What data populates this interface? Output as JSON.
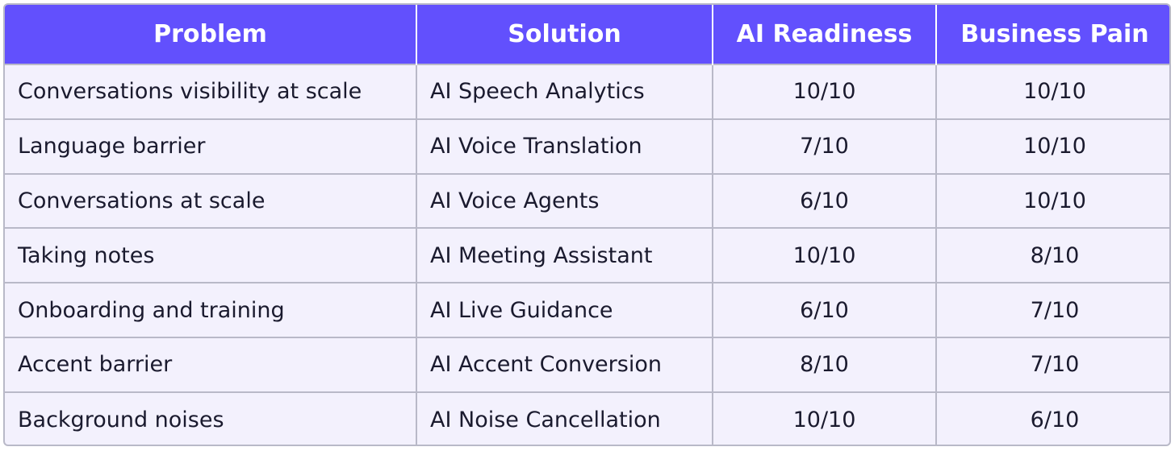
{
  "table": {
    "headers": [
      "Problem",
      "Solution",
      "AI Readiness",
      "Business Pain"
    ],
    "rows": [
      {
        "problem": "Conversations visibility at scale",
        "solution": "AI Speech Analytics",
        "ai_readiness": "10/10",
        "business_pain": "10/10"
      },
      {
        "problem": "Language barrier",
        "solution": "AI Voice Translation",
        "ai_readiness": "7/10",
        "business_pain": "10/10"
      },
      {
        "problem": "Conversations at scale",
        "solution": "AI Voice Agents",
        "ai_readiness": "6/10",
        "business_pain": "10/10"
      },
      {
        "problem": "Taking notes",
        "solution": "AI Meeting Assistant",
        "ai_readiness": "10/10",
        "business_pain": "8/10"
      },
      {
        "problem": "Onboarding and training",
        "solution": "AI Live Guidance",
        "ai_readiness": "6/10",
        "business_pain": "7/10"
      },
      {
        "problem": "Accent barrier",
        "solution": "AI Accent Conversion",
        "ai_readiness": "8/10",
        "business_pain": "7/10"
      },
      {
        "problem": "Background noises",
        "solution": "AI Noise Cancellation",
        "ai_readiness": "10/10",
        "business_pain": "6/10"
      }
    ]
  },
  "colors": {
    "header_background": "#6250fd",
    "header_text": "#ffffff",
    "row_background": "#f3f1fd",
    "border": "#b9b9c8",
    "body_text": "#1a1a2e"
  }
}
